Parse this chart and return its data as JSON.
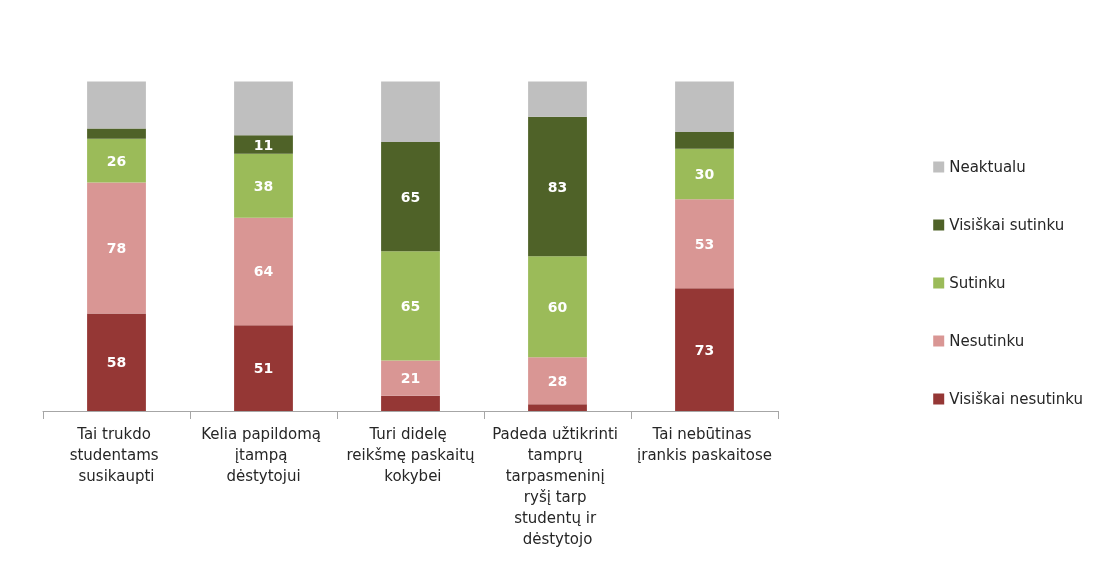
{
  "chart_data": {
    "type": "bar",
    "stacked": true,
    "legend": "right",
    "categories": [
      "Tai trukdo studentams susikaupti",
      "Kelia papildomą įtampą dėstytojui",
      "Turi didelę reikšmę paskaitų kokybei",
      "Padeda užtikrinti tamprų tarpasmeninį ryšį tarp studentų ir dėstytojo",
      "Tai nebūtinas įrankis paskaitose"
    ],
    "series": [
      {
        "name": "Visiškai nesutinku",
        "color": "#953735",
        "values": [
          58,
          51,
          9,
          4,
          73
        ],
        "value_labels": [
          "58",
          "51",
          null,
          null,
          "73"
        ]
      },
      {
        "name": "Nesutinku",
        "color": "#d99694",
        "values": [
          78,
          64,
          21,
          28,
          53
        ],
        "value_labels": [
          "78",
          "64",
          "21",
          "28",
          "53"
        ]
      },
      {
        "name": "Sutinku",
        "color": "#9bbb59",
        "values": [
          26,
          38,
          65,
          60,
          30
        ],
        "value_labels": [
          "26",
          "38",
          "65",
          "60",
          "30"
        ]
      },
      {
        "name": "Visiškai sutinku",
        "color": "#4f6228",
        "values": [
          6,
          11,
          65,
          83,
          10
        ],
        "value_labels": [
          null,
          "11",
          "65",
          "83",
          null
        ]
      },
      {
        "name": "Neaktualu",
        "color": "#bfbfbf",
        "values": [
          28,
          32,
          36,
          21,
          30
        ],
        "value_labels": [
          null,
          null,
          null,
          null,
          null
        ]
      }
    ]
  }
}
